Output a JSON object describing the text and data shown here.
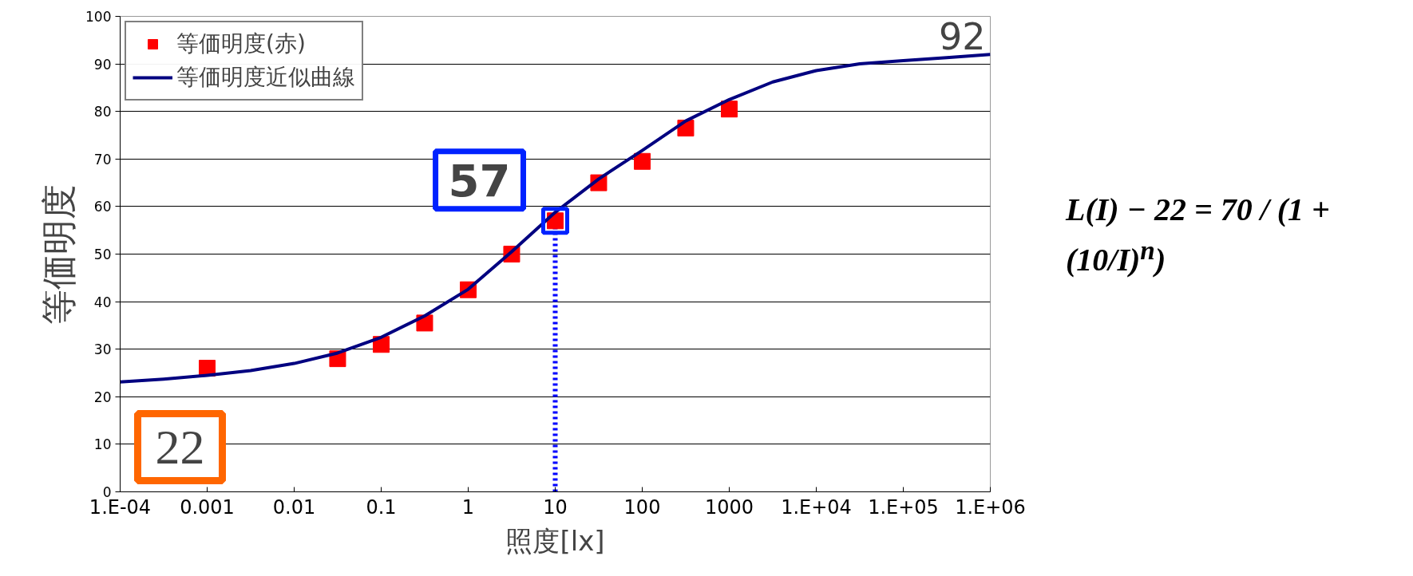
{
  "chart_data": {
    "type": "scatter",
    "xlabel": "照度[lx]",
    "ylabel": "等価明度",
    "log": "x",
    "xlim": [
      0.0001,
      1000000
    ],
    "ylim": [
      0,
      100
    ],
    "xticks": [
      {
        "value": 0.0001,
        "label": "1.E-04"
      },
      0.001,
      0.01,
      0.1,
      1,
      10,
      100,
      1000,
      {
        "value": 10000,
        "label": "1.E+04"
      },
      {
        "value": 100000,
        "label": "1.E+05"
      },
      {
        "value": 1000000,
        "label": "1.E+06"
      }
    ],
    "yticks": [
      0,
      10,
      20,
      30,
      40,
      50,
      60,
      70,
      80,
      90,
      100
    ],
    "grid": "y",
    "legend": "top left",
    "series": [
      {
        "name": "等価明度(赤)",
        "marker": "square",
        "color": "#ff0000",
        "x": [
          0.001,
          0.0316,
          0.1,
          0.316,
          1,
          3.16,
          10,
          31.6,
          100,
          316,
          1000
        ],
        "values": [
          26,
          28,
          31,
          35.5,
          42.5,
          50,
          57,
          65,
          69.5,
          76.5,
          80.5
        ]
      },
      {
        "name": "等価明度近似曲線",
        "type": "line",
        "color": "#000080",
        "x": [
          0.0001,
          0.000316,
          0.001,
          0.00316,
          0.01,
          0.0316,
          0.1,
          0.316,
          1,
          3.16,
          10,
          31.6,
          100,
          316,
          1000,
          3160,
          10000,
          31600,
          100000,
          316000,
          1000000
        ],
        "values": [
          23.1,
          23.7,
          24.5,
          25.5,
          27.0,
          29.2,
          32.5,
          37.0,
          42.6,
          50.5,
          58.8,
          65.8,
          71.8,
          78,
          82.5,
          86.2,
          88.6,
          90,
          90.7,
          91.3,
          92
        ]
      }
    ],
    "annotations": [
      {
        "text": "92",
        "x": 1000000,
        "y": 92
      },
      {
        "text": "57",
        "x": 10,
        "y": 57
      },
      "22",
      "L(I) − 22 = 70 / (1 + (10/I)$^{n}$)"
    ],
    "ref_lines": [
      {
        "axis": "x",
        "value": 10,
        "color": "#0000ff",
        "line_style": "dotted"
      }
    ]
  }
}
